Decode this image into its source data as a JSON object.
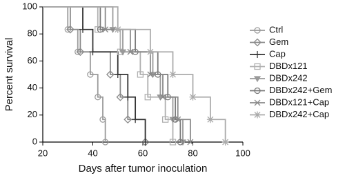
{
  "chart_data": {
    "type": "step",
    "x_label": "Days after tumor inoculation",
    "y_label": "Percent survival",
    "xlim": [
      20,
      100
    ],
    "xticks": [
      20,
      40,
      60,
      80,
      100
    ],
    "ylim": [
      0,
      100
    ],
    "yticks": [
      0,
      20,
      40,
      60,
      80,
      100
    ],
    "legend": "right",
    "series": [
      {
        "name": "Ctrl",
        "color": "#9a9a9a",
        "marker": "circle",
        "x": [
          20,
          30,
          34,
          39,
          42,
          44,
          45
        ],
        "values": [
          100,
          83.3,
          66.7,
          50,
          33.3,
          16.7,
          0
        ]
      },
      {
        "name": "Gem",
        "color": "#8a8a8a",
        "marker": "diamond",
        "x": [
          20,
          31,
          35,
          47,
          51,
          54,
          61
        ],
        "values": [
          100,
          83.3,
          66.7,
          50,
          33.3,
          16.7,
          0
        ]
      },
      {
        "name": "Cap",
        "color": "#333333",
        "marker": "plus",
        "x": [
          20,
          36,
          40,
          50,
          54,
          57,
          61
        ],
        "values": [
          100,
          83.3,
          66.7,
          50,
          33.3,
          16.7,
          0
        ]
      },
      {
        "name": "DBDx121",
        "color": "#b0b0b0",
        "marker": "square",
        "x": [
          20,
          42,
          51,
          59,
          62,
          69,
          72
        ],
        "values": [
          100,
          83.3,
          66.7,
          50,
          33.3,
          16.7,
          0
        ]
      },
      {
        "name": "DBDx242",
        "color": "#9a9a9a",
        "marker": "triangle",
        "x": [
          20,
          48,
          52,
          64,
          67,
          72,
          76
        ],
        "values": [
          100,
          83.3,
          66.7,
          50,
          33.3,
          16.7,
          0
        ]
      },
      {
        "name": "DBDx242+Gem",
        "color": "#7a7a7a",
        "marker": "circle",
        "x": [
          20,
          43,
          57,
          66,
          70,
          73,
          75
        ],
        "values": [
          100,
          83.3,
          66.7,
          50,
          33.3,
          16.7,
          0
        ]
      },
      {
        "name": "DBDx121+Cap",
        "color": "#8a8a8a",
        "marker": "cross",
        "x": [
          20,
          45,
          55,
          63,
          68,
          74,
          79
        ],
        "values": [
          100,
          83.3,
          66.7,
          50,
          33.3,
          16.7,
          0
        ]
      },
      {
        "name": "DBDx242+Cap",
        "color": "#ababab",
        "marker": "star",
        "x": [
          20,
          50,
          63,
          72,
          80,
          87,
          93
        ],
        "values": [
          100,
          83.3,
          66.7,
          50,
          33.3,
          16.7,
          0
        ]
      }
    ]
  }
}
